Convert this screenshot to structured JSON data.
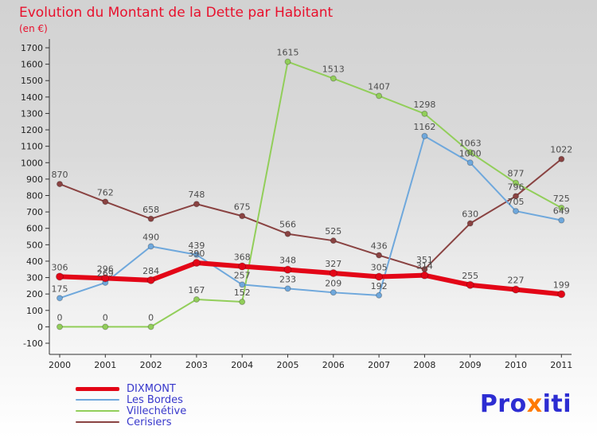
{
  "title": "Evolution du Montant de la Dette par Habitant",
  "subtitle": "(en €)",
  "logo": {
    "part1": "Pro",
    "part2": "x",
    "part3": "iti"
  },
  "chart_data": {
    "type": "line",
    "x": [
      2000,
      2001,
      2002,
      2003,
      2004,
      2005,
      2006,
      2007,
      2008,
      2009,
      2010,
      2011
    ],
    "series": [
      {
        "name": "DIXMONT",
        "color": "#e30617",
        "thick": true,
        "values": [
          306,
          296,
          284,
          390,
          368,
          348,
          327,
          305,
          314,
          255,
          227,
          199
        ]
      },
      {
        "name": "Les Bordes",
        "color": "#6fa8dc",
        "thick": false,
        "values": [
          175,
          269,
          490,
          439,
          257,
          233,
          209,
          192,
          1162,
          1000,
          705,
          649
        ]
      },
      {
        "name": "Villechétive",
        "color": "#92ce5a",
        "thick": false,
        "values": [
          0,
          0,
          0,
          167,
          152,
          1615,
          1513,
          1407,
          1298,
          1063,
          877,
          725
        ]
      },
      {
        "name": "Cerisiers",
        "color": "#8a4342",
        "thick": false,
        "values": [
          870,
          762,
          658,
          748,
          675,
          566,
          525,
          436,
          351,
          630,
          796,
          1022
        ]
      }
    ],
    "title": "Evolution du Montant de la Dette par Habitant",
    "ylabel": "en €",
    "xlabel": "",
    "ylim": [
      -100,
      1700
    ],
    "ytick_step": 100,
    "grid": false,
    "legend_position": "bottom-left",
    "label_color": "#4d4d4d",
    "axis_color": "#333333"
  }
}
